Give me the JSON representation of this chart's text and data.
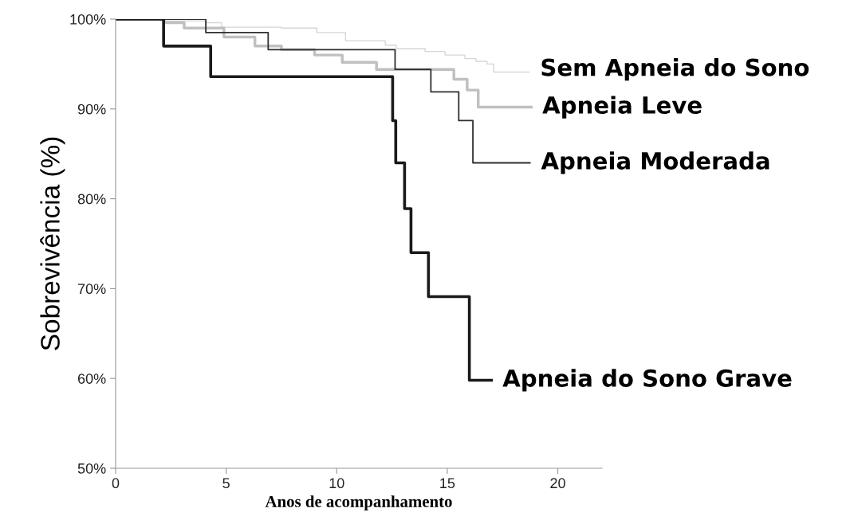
{
  "chart_data": {
    "type": "step",
    "xlabel": "Anos de acompanhamento",
    "ylabel": "Sobrevivência (%)",
    "xlim": [
      0,
      22
    ],
    "xticks": [
      0,
      5,
      10,
      15,
      20
    ],
    "ylim": [
      50,
      100
    ],
    "yticks": [
      {
        "value": 50,
        "label": "50%"
      },
      {
        "value": 60,
        "label": "60%"
      },
      {
        "value": 70,
        "label": "70%"
      },
      {
        "value": 80,
        "label": "80%"
      },
      {
        "value": 90,
        "label": "90%"
      },
      {
        "value": 100,
        "label": "100%"
      }
    ],
    "grid": false,
    "legend": false,
    "series": [
      {
        "name": "Sem Apneia do Sono",
        "color": "#d6d6d6",
        "x": [
          0,
          2,
          4.1,
          4.8,
          7.5,
          9.1,
          10.4,
          12.2,
          12.7,
          14.0,
          14.9,
          15.8,
          16.3,
          16.8,
          17.1,
          18.7
        ],
        "values": [
          100,
          99.8,
          99.6,
          99.1,
          99.0,
          98.5,
          97.6,
          97.1,
          96.7,
          96.4,
          96.0,
          95.6,
          95.3,
          95.0,
          94.1,
          94.1
        ]
      },
      {
        "name": "Apneia Leve",
        "color": "#c0c0c0",
        "x": [
          0,
          2.2,
          3.1,
          4.9,
          6.3,
          7.5,
          9.0,
          10.25,
          11.8,
          15.3,
          15.9,
          16.4,
          18.8
        ],
        "values": [
          100,
          99.6,
          99.0,
          98.0,
          97.0,
          96.6,
          96.0,
          95.2,
          94.4,
          93.3,
          92.1,
          90.2,
          90.2
        ]
      },
      {
        "name": "Apneia Moderada",
        "color": "#2e2e2e",
        "x": [
          0,
          4.08,
          6.9,
          12.64,
          14.26,
          15.52,
          16.16,
          18.74
        ],
        "values": [
          100,
          98.5,
          96.6,
          94.4,
          91.9,
          88.7,
          84.0,
          84.0
        ]
      },
      {
        "name": "Apneia do Sono Grave",
        "color": "#1a1a1a",
        "x": [
          0,
          2.17,
          4.3,
          12.53,
          12.67,
          13.07,
          13.36,
          14.15,
          16.0,
          17.0
        ],
        "values": [
          100,
          97.0,
          93.6,
          88.7,
          84.0,
          78.9,
          74.0,
          69.1,
          59.8,
          59.8
        ]
      }
    ]
  }
}
